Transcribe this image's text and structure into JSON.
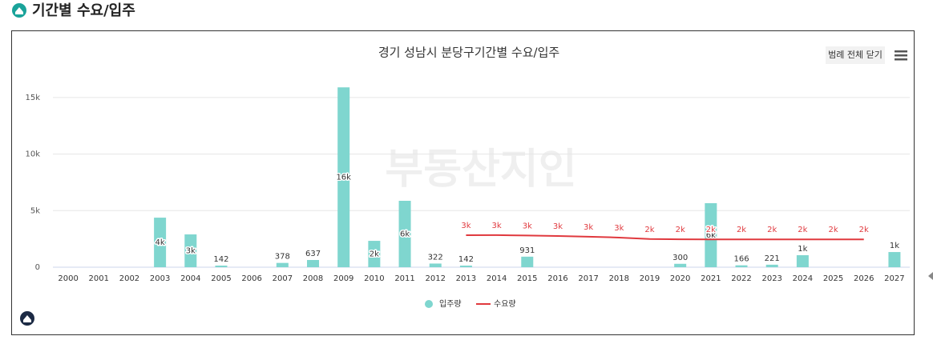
{
  "header": {
    "title": "기간별 수요/입주"
  },
  "toolbar": {
    "legend_toggle": "범례 전체 닫기"
  },
  "watermark": "부동산지인",
  "chart_data": {
    "type": "bar",
    "title": "경기 성남시 분당구기간별 수요/입주",
    "categories": [
      "2000",
      "2001",
      "2002",
      "2003",
      "2004",
      "2005",
      "2006",
      "2007",
      "2008",
      "2009",
      "2010",
      "2011",
      "2012",
      "2013",
      "2014",
      "2015",
      "2016",
      "2017",
      "2018",
      "2019",
      "2020",
      "2021",
      "2022",
      "2023",
      "2024",
      "2025",
      "2026",
      "2027"
    ],
    "series": [
      {
        "name": "입주량",
        "type": "bar",
        "color": "#7fd6cf",
        "values": [
          null,
          null,
          null,
          4380,
          2900,
          142,
          null,
          378,
          637,
          15900,
          2330,
          5870,
          322,
          142,
          null,
          931,
          null,
          null,
          null,
          null,
          300,
          5660,
          166,
          221,
          1060,
          null,
          null,
          1340
        ],
        "value_labels": [
          null,
          null,
          null,
          "4k",
          "3k",
          null,
          null,
          null,
          null,
          "16k",
          "2k",
          "6k",
          null,
          null,
          null,
          null,
          null,
          null,
          null,
          null,
          null,
          "6k",
          null,
          null,
          "1k",
          null,
          null,
          "1k"
        ]
      },
      {
        "name": "수요량",
        "type": "line",
        "color": "#e0393e",
        "values": [
          null,
          null,
          null,
          null,
          null,
          null,
          null,
          null,
          null,
          null,
          null,
          null,
          null,
          2830,
          2840,
          2800,
          2760,
          2700,
          2620,
          2490,
          2470,
          2460,
          2460,
          2460,
          2460,
          2460,
          2460,
          null
        ],
        "value_labels": [
          null,
          null,
          null,
          null,
          null,
          null,
          null,
          null,
          null,
          null,
          null,
          null,
          null,
          "3k",
          "3k",
          "3k",
          "3k",
          "3k",
          "3k",
          "2k",
          "2k",
          "2k",
          "2k",
          "2k",
          "2k",
          "2k",
          "2k",
          null
        ]
      }
    ],
    "ylim": [
      0,
      16500
    ],
    "yticks": [
      0,
      {
        "value": 5000,
        "label": "5k"
      },
      {
        "value": 10000,
        "label": "10k"
      },
      {
        "value": 15000,
        "label": "15k"
      }
    ],
    "grid": true,
    "legend": "bottom"
  }
}
